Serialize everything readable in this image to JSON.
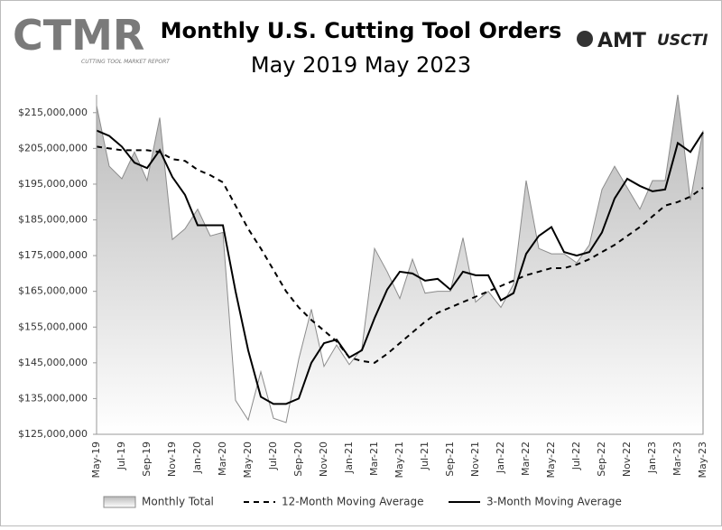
{
  "chart_data": {
    "type": "line",
    "title": "Monthly U.S. Cutting Tool Orders",
    "subtitle": "May 2019 May 2023",
    "logos": {
      "ctmr": "CTMR",
      "ctmr_tagline": "CUTTING TOOL MARKET REPORT",
      "amt": "AMT",
      "uscti": "USCTI"
    },
    "x": [
      "May-19",
      null,
      "Jul-19",
      null,
      "Sep-19",
      null,
      "Nov-19",
      null,
      "Jan-20",
      null,
      "Mar-20",
      null,
      "May-20",
      null,
      "Jul-20",
      null,
      "Sep-20",
      null,
      "Nov-20",
      null,
      "Jan-21",
      null,
      "Mar-21",
      null,
      "May-21",
      null,
      "Jul-21",
      null,
      "Sep-21",
      null,
      "Nov-21",
      null,
      "Jan-22",
      null,
      "Mar-22",
      null,
      "May-22",
      null,
      "Jul-22",
      null,
      "Sep-22",
      null,
      "Nov-22",
      null,
      "Jan-23",
      null,
      "Mar-23",
      null,
      "May-23"
    ],
    "ylim": [
      125000000,
      220000000
    ],
    "yticks": [
      {
        "value": 125000000,
        "label": "$125,000,000"
      },
      {
        "value": 135000000,
        "label": "$135,000,000"
      },
      {
        "value": 145000000,
        "label": "$145,000,000"
      },
      {
        "value": 155000000,
        "label": "$155,000,000"
      },
      {
        "value": 165000000,
        "label": "$165,000,000"
      },
      {
        "value": 175000000,
        "label": "$175,000,000"
      },
      {
        "value": 185000000,
        "label": "$185,000,000"
      },
      {
        "value": 195000000,
        "label": "$195,000,000"
      },
      {
        "value": 205000000,
        "label": "$205,000,000"
      },
      {
        "value": 215000000,
        "label": "$215,000,000"
      }
    ],
    "series": [
      {
        "name": "Monthly Total",
        "kind": "area",
        "color": "#8c8c8c",
        "values": [
          217000000,
          200000000,
          196500000,
          204000000,
          196000000,
          213600000,
          179500000,
          182500000,
          188000000,
          180500000,
          181500000,
          134500000,
          129000000,
          142500000,
          129500000,
          128300000,
          146000000,
          160000000,
          144000000,
          150000000,
          144500000,
          149000000,
          177000000,
          170500000,
          163000000,
          174000000,
          164500000,
          165000000,
          165000000,
          180000000,
          162000000,
          165000000,
          160500000,
          167000000,
          196000000,
          177000000,
          175500000,
          175500000,
          173000000,
          178000000,
          193500000,
          200000000,
          194000000,
          188000000,
          196000000,
          196000000,
          220000000,
          190500000,
          210000000
        ]
      },
      {
        "name": "12-Month Moving Average",
        "kind": "line",
        "dashed": true,
        "color": "#000000",
        "values": [
          205500000,
          205000000,
          204500000,
          204500000,
          204500000,
          204000000,
          202000000,
          201500000,
          199000000,
          197500000,
          195500000,
          189000000,
          182500000,
          177000000,
          171000000,
          165000000,
          160500000,
          157000000,
          154000000,
          151000000,
          146500000,
          145500000,
          145000000,
          147500000,
          150500000,
          153500000,
          156500000,
          159000000,
          160500000,
          162000000,
          163500000,
          165000000,
          166500000,
          168000000,
          169500000,
          170500000,
          171500000,
          171500000,
          172500000,
          174000000,
          176000000,
          178000000,
          180500000,
          183000000,
          186000000,
          189000000,
          190000000,
          191500000,
          194000000
        ]
      },
      {
        "name": "3-Month Moving Average",
        "kind": "line",
        "dashed": false,
        "color": "#000000",
        "values": [
          210000000,
          208500000,
          205500000,
          201000000,
          199500000,
          204500000,
          197000000,
          192000000,
          183500000,
          183500000,
          183500000,
          165000000,
          148500000,
          135500000,
          133500000,
          133500000,
          135000000,
          145000000,
          150500000,
          151500000,
          146500000,
          148500000,
          157500000,
          165500000,
          170500000,
          170000000,
          168000000,
          168500000,
          165500000,
          170500000,
          169500000,
          169500000,
          162500000,
          164500000,
          175500000,
          180500000,
          183000000,
          176000000,
          175000000,
          176000000,
          181500000,
          191000000,
          196500000,
          194500000,
          193000000,
          193500000,
          206500000,
          204000000,
          209500000
        ]
      }
    ],
    "grid": false,
    "legend": "bottom"
  }
}
